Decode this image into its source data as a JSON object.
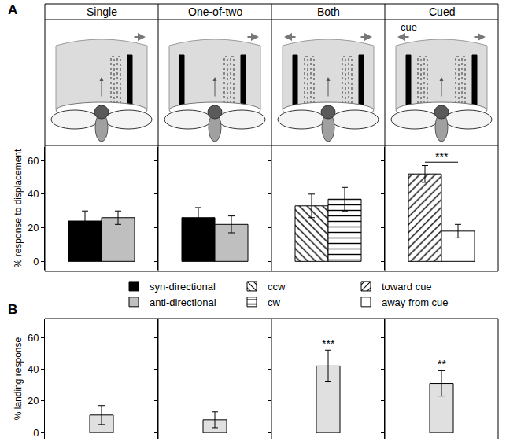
{
  "chart_data": [
    {
      "type": "bar",
      "title": "Single",
      "panel_label": "A",
      "categories": [
        null
      ],
      "series": [
        {
          "name": "syn-directional",
          "color": "#000000",
          "marker": "solid",
          "values": [
            24
          ],
          "error": [
            6
          ]
        },
        {
          "name": "anti-directional",
          "color": "#bfbfbf",
          "marker": "solid",
          "values": [
            26
          ],
          "error": [
            4
          ]
        }
      ],
      "ylabel": "% response to displacement",
      "ylim": [
        -5,
        68
      ],
      "yticks": [
        0,
        20,
        40,
        60
      ],
      "tick_labels": "y",
      "legend": "bottom"
    },
    {
      "type": "bar",
      "title": "One-of-two",
      "categories": [
        null
      ],
      "series": [
        {
          "name": "syn-directional",
          "color": "#000000",
          "marker": "solid",
          "values": [
            26
          ],
          "error": [
            6
          ]
        },
        {
          "name": "anti-directional",
          "color": "#bfbfbf",
          "marker": "solid",
          "values": [
            22
          ],
          "error": [
            5
          ]
        }
      ],
      "ylim": [
        -5,
        68
      ],
      "yticks": [
        0,
        20,
        40,
        60
      ],
      "tick_labels": false,
      "legend": "bottom"
    },
    {
      "type": "bar",
      "title": "Both",
      "categories": [
        null
      ],
      "series": [
        {
          "name": "ccw",
          "color": "#ffffff",
          "marker": "hatch_back",
          "values": [
            33
          ],
          "error": [
            7
          ]
        },
        {
          "name": "cw",
          "color": "#ffffff",
          "marker": "hatch_horizontal",
          "values": [
            37
          ],
          "error": [
            7
          ]
        }
      ],
      "ylim": [
        -5,
        68
      ],
      "yticks": [
        0,
        20,
        40,
        60
      ],
      "tick_labels": false,
      "legend": "bottom"
    },
    {
      "type": "bar",
      "title": "Cued",
      "annotations": [
        {
          "text": "cue"
        }
      ],
      "significance": "***",
      "categories": [
        null
      ],
      "series": [
        {
          "name": "toward cue",
          "color": "#ffffff",
          "marker": "hatch_forward",
          "values": [
            52
          ],
          "error": [
            5
          ]
        },
        {
          "name": "away from cue",
          "color": "#ffffff",
          "marker": "solid",
          "values": [
            18
          ],
          "error": [
            4
          ]
        }
      ],
      "ylim": [
        -5,
        68
      ],
      "yticks": [
        0,
        20,
        40,
        60
      ],
      "tick_labels": false,
      "legend": "bottom"
    },
    {
      "type": "bar",
      "panel_label": "B",
      "categories": [
        null
      ],
      "values": [
        11
      ],
      "error": [
        6
      ],
      "color": "#e0e0e0",
      "ylabel": "% landing response",
      "ylim": [
        -4,
        72
      ],
      "yticks": [
        0,
        20,
        40,
        60
      ],
      "tick_labels": "y"
    },
    {
      "type": "bar",
      "categories": [
        null
      ],
      "values": [
        8
      ],
      "error": [
        5
      ],
      "color": "#e0e0e0",
      "ylim": [
        -4,
        72
      ],
      "yticks": [
        0,
        20,
        40,
        60
      ],
      "tick_labels": false
    },
    {
      "type": "bar",
      "categories": [
        null
      ],
      "values": [
        42
      ],
      "error": [
        10
      ],
      "color": "#e0e0e0",
      "significance": "***",
      "ylim": [
        -4,
        72
      ],
      "yticks": [
        0,
        20,
        40,
        60
      ],
      "tick_labels": false
    },
    {
      "type": "bar",
      "categories": [
        null
      ],
      "values": [
        31
      ],
      "error": [
        8
      ],
      "color": "#e0e0e0",
      "significance": "**",
      "ylim": [
        -4,
        72
      ],
      "yticks": [
        0,
        20,
        40,
        60
      ],
      "tick_labels": false
    }
  ]
}
